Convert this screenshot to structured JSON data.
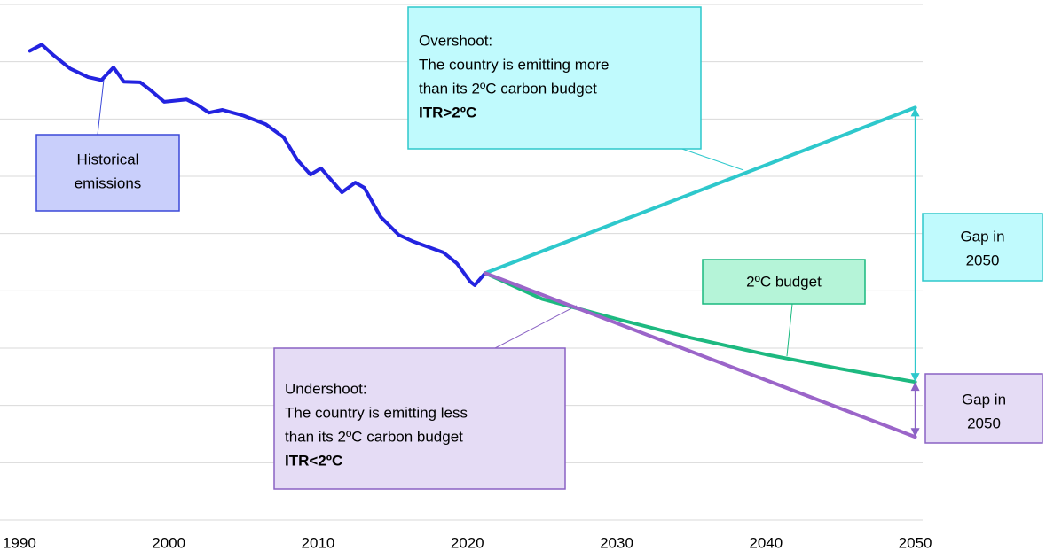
{
  "chart_data": {
    "type": "line",
    "xlim": [
      1988.7,
      2050.5
    ],
    "xticks": [
      1990,
      2000,
      2010,
      2020,
      2030,
      2040,
      2050
    ],
    "ylim": [
      0,
      9
    ],
    "yticks": [
      0,
      1,
      2,
      3,
      4,
      5,
      6,
      7,
      8,
      9
    ],
    "grid": true,
    "series": [
      {
        "color": "#2323e0",
        "x": [
          1990.7,
          1991.5,
          1992.3,
          1993.4,
          1994.6,
          1995.5,
          1996.3,
          1997.0,
          1998.1,
          1998.8,
          1999.7,
          2001.2,
          2001.9,
          2002.7,
          2003.6,
          2005.0,
          2006.5,
          2007.7,
          2008.6,
          2009.5,
          2010.2,
          2011.6,
          2012.5,
          2013.1,
          2014.2,
          2015.4,
          2016.3,
          2018.4,
          2019.3,
          2020.2,
          2020.5,
          2021.2
        ],
        "values": [
          8.19,
          8.3,
          8.11,
          7.88,
          7.73,
          7.68,
          7.9,
          7.65,
          7.64,
          7.5,
          7.3,
          7.34,
          7.25,
          7.11,
          7.16,
          7.06,
          6.91,
          6.68,
          6.29,
          6.03,
          6.14,
          5.72,
          5.89,
          5.8,
          5.29,
          4.98,
          4.87,
          4.67,
          4.48,
          4.16,
          4.1,
          4.31
        ]
      },
      {
        "color": "#2ec8cc",
        "x": [
          2021.2,
          2050
        ],
        "values": [
          4.31,
          7.2
        ]
      },
      {
        "color": "#1db980",
        "x": [
          2021.2,
          2025,
          2030,
          2035,
          2040,
          2045,
          2050
        ],
        "values": [
          4.31,
          3.86,
          3.51,
          3.18,
          2.89,
          2.64,
          2.41
        ]
      },
      {
        "color": "#9b65c9",
        "x": [
          2021.2,
          2050
        ],
        "values": [
          4.31,
          1.45
        ]
      }
    ],
    "annotations": [
      {
        "lines": [
          "Historical",
          "emissions"
        ]
      },
      {
        "lines": [
          "Overshoot:",
          "The country is emitting more",
          "than its 2ºC carbon budget",
          "ITR>2ºC"
        ]
      },
      {
        "lines": [
          "2ºC budget"
        ]
      },
      {
        "lines": [
          "Undershoot:",
          "The country is emitting less",
          "than its 2ºC carbon budget",
          "ITR<2ºC"
        ]
      },
      {
        "lines": [
          "Gap in",
          "2050"
        ]
      },
      {
        "lines": [
          "Gap in",
          "2050"
        ]
      }
    ]
  }
}
